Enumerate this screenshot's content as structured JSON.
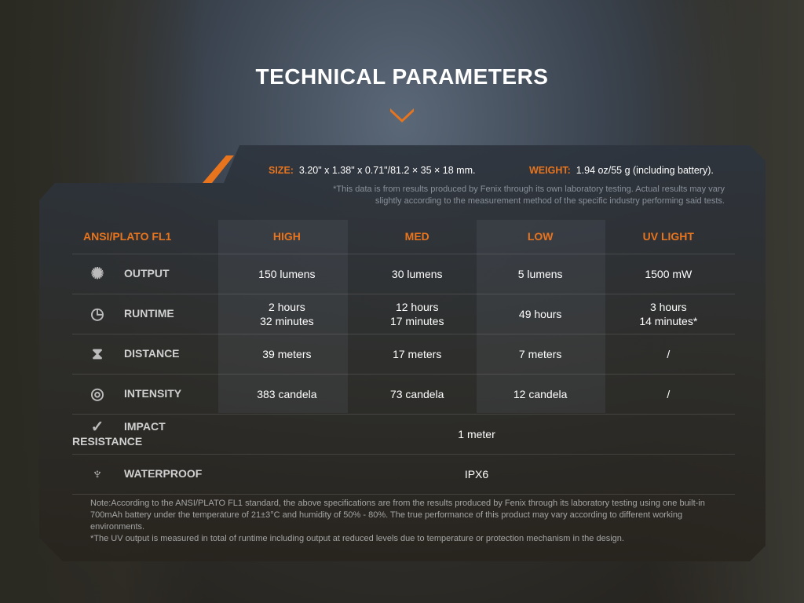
{
  "title": "TECHNICAL PARAMETERS",
  "size_label": "SIZE:",
  "size_value": "3.20\" x 1.38\" x 0.71\"/81.2 × 35 × 18 mm.",
  "weight_label": "WEIGHT:",
  "weight_value": "1.94 oz/55 g (including battery).",
  "disclaimer_1": "*This data is from results produced by Fenix through its own laboratory testing. Actual results may vary",
  "disclaimer_2": "slightly according to the measurement method of the specific industry performing said tests.",
  "accent": "#e8741e",
  "table": {
    "headers": [
      "ANSI/PLATO FL1",
      "HIGH",
      "MED",
      "LOW",
      "UV LIGHT"
    ],
    "rows": [
      {
        "icon": "burst-icon",
        "label": "OUTPUT",
        "cells": [
          "150 lumens",
          "30 lumens",
          "5 lumens",
          "1500 mW"
        ]
      },
      {
        "icon": "clock-icon",
        "label": "RUNTIME",
        "cells": [
          [
            "2 hours",
            "32 minutes"
          ],
          [
            "12 hours",
            "17 minutes"
          ],
          [
            "49 hours"
          ],
          [
            "3 hours",
            "14 minutes*"
          ]
        ]
      },
      {
        "icon": "distance-icon",
        "label": "DISTANCE",
        "cells": [
          "39 meters",
          "17 meters",
          "7 meters",
          "/"
        ]
      },
      {
        "icon": "target-icon",
        "label": "INTENSITY",
        "cells": [
          "383 candela",
          "73 candela",
          "12 candela",
          "/"
        ]
      },
      {
        "icon": "impact-icon",
        "label": "IMPACT RESISTANCE",
        "value": "1 meter"
      },
      {
        "icon": "waterproof-icon",
        "label": "WATERPROOF",
        "value": "IPX6"
      }
    ]
  },
  "note_1": "Note:According to the ANSI/PLATO FL1 standard, the above specifications are from the results produced by Fenix through its laboratory testing using one built-in 700mAh battery under the temperature of 21±3°C and humidity of 50% - 80%. The true performance of this product may vary according to different working environments.",
  "note_2": "*The UV output is measured in total of runtime including output at reduced levels due to temperature or protection mechanism in the design."
}
